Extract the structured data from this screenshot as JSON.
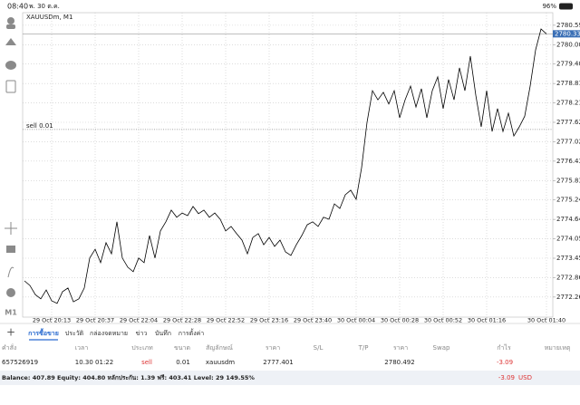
{
  "status_bar": {
    "time": "08:40",
    "date": "พ. 30 ต.ค.",
    "battery": "96%"
  },
  "chart_data": {
    "type": "line",
    "title": "XAUUSDm, M1",
    "categories": [
      null,
      null,
      null,
      null,
      null,
      "29 Oct 20:13",
      null,
      null,
      null,
      null,
      null,
      null,
      null,
      "29 Oct 20:37",
      null,
      null,
      null,
      null,
      null,
      null,
      null,
      "29 Oct 22:04",
      null,
      null,
      null,
      null,
      null,
      null,
      null,
      "29 Oct 22:28",
      null,
      null,
      null,
      null,
      null,
      null,
      null,
      "29 Oct 22:52",
      null,
      null,
      null,
      null,
      null,
      null,
      null,
      "29 Oct 23:16",
      null,
      null,
      null,
      null,
      null,
      null,
      null,
      "29 Oct 23:40",
      null,
      null,
      null,
      null,
      null,
      null,
      null,
      "30 Oct 00:04",
      null,
      null,
      null,
      null,
      null,
      null,
      null,
      "30 Oct 00:28",
      null,
      null,
      null,
      null,
      null,
      null,
      null,
      "30 Oct 00:52",
      null,
      null,
      null,
      null,
      null,
      null,
      null,
      "30 Oct 01:16",
      null,
      null,
      null,
      null,
      null,
      null,
      null,
      null,
      null,
      null,
      "30 Oct 01:40"
    ],
    "values": [
      2772.76,
      2772.62,
      2772.34,
      2772.21,
      2772.48,
      2772.15,
      2772.07,
      2772.43,
      2772.54,
      2772.12,
      2772.21,
      2772.54,
      2773.46,
      2773.73,
      2773.32,
      2773.93,
      2773.59,
      2774.57,
      2773.46,
      2773.18,
      2773.04,
      2773.46,
      2773.32,
      2774.15,
      2773.46,
      2774.29,
      2774.57,
      2774.93,
      2774.71,
      2774.84,
      2774.76,
      2775.04,
      2774.82,
      2774.93,
      2774.71,
      2774.84,
      2774.65,
      2774.29,
      2774.43,
      2774.21,
      2774.01,
      2773.59,
      2774.09,
      2774.21,
      2773.87,
      2774.09,
      2773.82,
      2774.01,
      2773.65,
      2773.54,
      2773.87,
      2774.15,
      2774.48,
      2774.57,
      2774.43,
      2774.71,
      2774.65,
      2775.12,
      2774.98,
      2775.4,
      2775.54,
      2775.26,
      2776.23,
      2777.62,
      2778.59,
      2778.31,
      2778.54,
      2778.18,
      2778.59,
      2777.76,
      2778.31,
      2778.73,
      2778.09,
      2778.65,
      2777.76,
      2778.59,
      2779.01,
      2778.04,
      2778.93,
      2778.31,
      2779.29,
      2778.59,
      2779.65,
      2778.45,
      2777.48,
      2778.59,
      2777.34,
      2778.04,
      2777.34,
      2777.9,
      2777.2,
      2777.48,
      2777.81,
      2778.73,
      2779.84,
      2780.48,
      2780.33
    ],
    "color": "#000000",
    "ylim": [
      2771.65,
      2780.98
    ],
    "yticks": [
      2780.595,
      {
        "value": 2780,
        "label": "2780.000"
      },
      2779.405,
      {
        "value": 2778.81,
        "label": "2778.810"
      },
      2778.215,
      {
        "value": 2777.62,
        "label": "2777.620"
      },
      2777.025,
      {
        "value": 2776.43,
        "label": "2776.430"
      },
      2775.835,
      2775.24,
      2774.645,
      {
        "value": 2774.05,
        "label": "2774.050"
      },
      2773.455,
      {
        "value": 2772.86,
        "label": "2772.860"
      },
      2772.265
    ],
    "grid": true,
    "last_price": 2780.332,
    "order_line": {
      "label": "sell 0.01",
      "value": 2777.401
    }
  },
  "tabs": [
    "การซื้อขาย",
    "ประวัติ",
    "กล่องจดหมาย",
    "ข่าว",
    "บันทึก",
    "การตั้งค่า"
  ],
  "table": {
    "columns": [
      "คำสั่ง",
      "เวลา",
      "ประเภท",
      "ขนาด",
      "สัญลักษณ์",
      "ราคา",
      "S/L",
      "T/P",
      "ราคา",
      "Swap",
      "กำไร",
      "หมายเหตุ"
    ],
    "rows": [
      {
        "order": "657526919",
        "time": "10.30 01:22",
        "type": "sell",
        "volume": "0.01",
        "symbol": "xauusdm",
        "price": "2777.401",
        "current_price": "2780.492",
        "profit": "-3.09"
      }
    ]
  },
  "balance": {
    "text": "Balance: 407.89 Equity: 404.80 หลักประกัน: 1.39 ฟรี: 403.41 Level: 29 149.55%",
    "profit": "-3.09",
    "currency": "USD"
  }
}
